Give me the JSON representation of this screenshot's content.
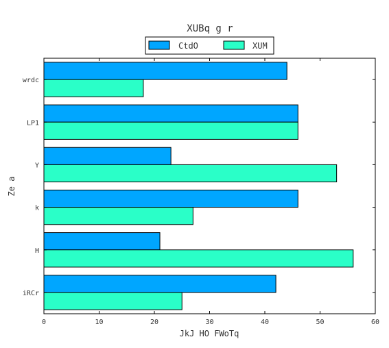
{
  "chart_data": {
    "type": "bar",
    "orientation": "horizontal",
    "title": "XUBq g r",
    "xlabel": "JkJ HO FWoTq",
    "ylabel": "Ze a",
    "categories": [
      "wrdc",
      "LP1",
      "Y",
      "k",
      "H",
      "iRCr"
    ],
    "series": [
      {
        "name": "CtdO",
        "color": "#00a6ff",
        "values": [
          44,
          46,
          23,
          46,
          21,
          42
        ]
      },
      {
        "name": "XUM",
        "color": "#2affc8",
        "values": [
          18,
          46,
          53,
          27,
          56,
          25
        ]
      }
    ],
    "xlim": [
      0,
      60
    ],
    "xticks": [
      0,
      10,
      20,
      30,
      40,
      50,
      60
    ],
    "grid": false,
    "legend_position": "top-center"
  }
}
